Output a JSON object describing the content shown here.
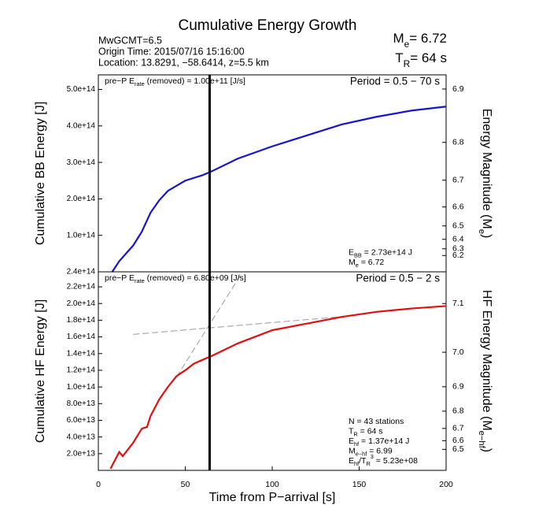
{
  "header": {
    "title": "Cumulative Energy Growth",
    "lines": [
      "MwGCMT=6.5",
      "Origin Time: 2015/07/16 15:16:00",
      "Location: 13.8291, −58.6414, z=5.5 km"
    ],
    "magnitude": [
      {
        "t": "M"
      },
      {
        "t": "e",
        "sub": true
      },
      {
        "t": "= 6.72"
      }
    ],
    "rupture": [
      {
        "t": "T"
      },
      {
        "t": "R",
        "sub": true
      },
      {
        "t": "= 64 s"
      }
    ]
  },
  "chart_data": [
    {
      "type": "line",
      "ylabel": "Cumulative BB Energy [J]",
      "y2label": [
        {
          "t": "Energy Magnitude (M"
        },
        {
          "t": "e",
          "sub": true
        },
        {
          "t": ")"
        }
      ],
      "x": [
        8,
        12,
        20,
        25,
        30,
        35,
        40,
        50,
        60,
        65,
        80,
        100,
        120,
        140,
        160,
        180,
        200
      ],
      "values": [
        0,
        29000000000000.0,
        72000000000000.0,
        110000000000000.0,
        162000000000000.0,
        196000000000000.0,
        222000000000000.0,
        250000000000000.0,
        265000000000000.0,
        275000000000000.0,
        310000000000000.0,
        344000000000000.0,
        374000000000000.0,
        404000000000000.0,
        425000000000000.0,
        442000000000000.0,
        453000000000000.0
      ],
      "color": "#1515d0",
      "xlim": [
        0,
        200
      ],
      "ylim": [
        0,
        540000000000000.0
      ],
      "yticks": [
        {
          "value": 100000000000000.0,
          "label": "1.0e+14"
        },
        {
          "value": 200000000000000.0,
          "label": "2.0e+14"
        },
        {
          "value": 300000000000000.0,
          "label": "3.0e+14"
        },
        {
          "value": 400000000000000.0,
          "label": "4.0e+14"
        },
        {
          "value": 500000000000000.0,
          "label": "5.0e+14"
        }
      ],
      "y2ticks": [
        6.9,
        6.8,
        6.7,
        6.6,
        6.5,
        6.4,
        6.3,
        6.2
      ],
      "vline": 64,
      "axis_floor_label": "2.4e+14",
      "rate": [
        {
          "t": "pre−P E"
        },
        {
          "t": "rate",
          "sub": true
        },
        {
          "t": " (removed) = 1.00e+11 [J/s]"
        }
      ],
      "period": "Period = 0.5 − 70 s",
      "info": [
        [
          {
            "t": "E"
          },
          {
            "t": "BB",
            "sub": true
          },
          {
            "t": " = 2.73e+14 J"
          }
        ],
        [
          {
            "t": "M"
          },
          {
            "t": "e",
            "sub": true
          },
          {
            "t": " = 6.72"
          }
        ]
      ]
    },
    {
      "type": "line",
      "ylabel": "Cumulative HF Energy [J]",
      "y2label": [
        {
          "t": "HF Energy Magnitude (M"
        },
        {
          "t": "e−hf",
          "sub": true
        },
        {
          "t": ")"
        }
      ],
      "xlabel": "Time from P−arrival [s]",
      "x": [
        7,
        10,
        12,
        14,
        20,
        25,
        28,
        30,
        35,
        40,
        45,
        50,
        55,
        65,
        80,
        100,
        120,
        140,
        160,
        180,
        200
      ],
      "values": [
        2000000000000.0,
        14000000000000.0,
        22000000000000.0,
        17000000000000.0,
        33000000000000.0,
        50000000000000.0,
        52000000000000.0,
        65000000000000.0,
        85000000000000.0,
        100000000000000.0,
        113000000000000.0,
        120000000000000.0,
        128000000000000.0,
        137000000000000.0,
        152000000000000.0,
        168000000000000.0,
        176000000000000.0,
        184000000000000.0,
        190000000000000.0,
        194000000000000.0,
        197000000000000.0
      ],
      "color": "#e01010",
      "guides": [
        {
          "x": [
            45,
            83
          ],
          "values": [
            112000000000000.0,
            238000000000000.0
          ]
        },
        {
          "x": [
            20,
            150
          ],
          "values": [
            163000000000000.0,
            186000000000000.0
          ]
        }
      ],
      "guide_color": "#999999",
      "xlim": [
        0,
        200
      ],
      "xticks": [
        0,
        50,
        100,
        150,
        200
      ],
      "ylim": [
        0,
        238000000000000.0
      ],
      "yticks": [
        {
          "value": 20000000000000.0,
          "label": "2.0e+13"
        },
        {
          "value": 40000000000000.0,
          "label": "4.0e+13"
        },
        {
          "value": 60000000000000.0,
          "label": "6.0e+13"
        },
        {
          "value": 80000000000000.0,
          "label": "8.0e+13"
        },
        {
          "value": 100000000000000.0,
          "label": "1.0e+14"
        },
        {
          "value": 120000000000000.0,
          "label": "1.2e+14"
        },
        {
          "value": 140000000000000.0,
          "label": "1.4e+14"
        },
        {
          "value": 160000000000000.0,
          "label": "1.6e+14"
        },
        {
          "value": 180000000000000.0,
          "label": "1.8e+14"
        },
        {
          "value": 200000000000000.0,
          "label": "2.0e+14"
        },
        {
          "value": 220000000000000.0,
          "label": "2.2e+14"
        }
      ],
      "y2ticks": [
        7.1,
        {
          "value": 7,
          "label": "7.0"
        },
        6.9,
        6.8,
        6.7,
        6.6,
        6.5
      ],
      "vline": 64,
      "rate": [
        {
          "t": "pre−P E"
        },
        {
          "t": "rate",
          "sub": true
        },
        {
          "t": " (removed) = 6.80e+09 [J/s]"
        }
      ],
      "period": "Period = 0.5 − 2 s",
      "info": [
        [
          {
            "t": "N = 43 stations"
          }
        ],
        [
          {
            "t": "T"
          },
          {
            "t": "R",
            "sub": true
          },
          {
            "t": " = 64  s"
          }
        ],
        [
          {
            "t": "E"
          },
          {
            "t": "hf",
            "sub": true
          },
          {
            "t": " = 1.37e+14 J"
          }
        ],
        [
          {
            "t": "M"
          },
          {
            "t": "e−hf",
            "sub": true
          },
          {
            "t": " = 6.99"
          }
        ],
        [
          {
            "t": "E"
          },
          {
            "t": "hf",
            "sub": true
          },
          {
            "t": "/T"
          },
          {
            "t": "R",
            "sub": true
          },
          {
            "t": "3",
            "sup": true
          },
          {
            "t": " =  5.23e+08"
          }
        ]
      ]
    }
  ]
}
